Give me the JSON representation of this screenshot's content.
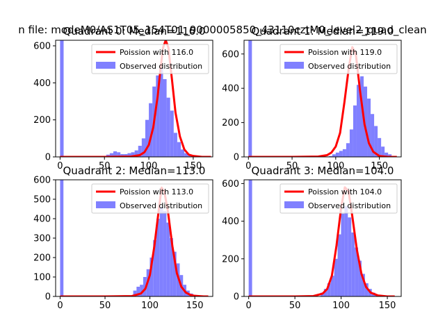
{
  "figure": {
    "suptitle": "n file: modeM0/AS1T05_154T01_9000005850_43110cztM0_level2_quad_clean"
  },
  "colors": {
    "poisson_line": "#ff0000",
    "observed_bars": "#8080ff",
    "spike": "#8080ff",
    "axes": "#000000",
    "legend_border": "#cccccc"
  },
  "chart_data": [
    {
      "type": "bar",
      "title": "Quadrant 0: Median=116.0",
      "xlim": [
        -5,
        172
      ],
      "ylim": [
        0,
        630
      ],
      "xticks": [
        0,
        50,
        100,
        150
      ],
      "yticks": [
        0,
        200,
        400,
        600
      ],
      "legend_placement": "upper right",
      "series": [
        {
          "name": "Poission with 116.0",
          "kind": "line",
          "x": [
            0,
            50,
            80,
            90,
            95,
            100,
            105,
            110,
            113,
            116,
            119,
            122,
            126,
            130,
            135,
            140,
            145,
            150,
            160,
            170
          ],
          "y": [
            0,
            0,
            2,
            10,
            25,
            65,
            160,
            330,
            470,
            590,
            630,
            590,
            420,
            240,
            110,
            40,
            12,
            5,
            0,
            0
          ]
        },
        {
          "name": "Observed distribution",
          "kind": "histogram",
          "bin_start": 0,
          "bin_width": 4,
          "counts": [
            700,
            0,
            0,
            0,
            0,
            0,
            0,
            0,
            0,
            0,
            0,
            0,
            5,
            12,
            20,
            30,
            25,
            15,
            15,
            20,
            25,
            35,
            60,
            100,
            200,
            290,
            380,
            440,
            480,
            420,
            320,
            250,
            130,
            80,
            40,
            20,
            10,
            5,
            3,
            2,
            0,
            0
          ]
        }
      ]
    },
    {
      "type": "bar",
      "title": "Quadrant 1: Median=119.0",
      "xlim": [
        -5,
        175
      ],
      "ylim": [
        0,
        680
      ],
      "xticks": [
        0,
        50,
        100,
        150
      ],
      "yticks": [
        0,
        200,
        400,
        600
      ],
      "legend_placement": "upper right",
      "series": [
        {
          "name": "Poission with 119.0",
          "kind": "line",
          "x": [
            0,
            50,
            80,
            90,
            95,
            100,
            105,
            110,
            115,
            119,
            123,
            128,
            133,
            138,
            143,
            150,
            160,
            170
          ],
          "y": [
            0,
            0,
            2,
            10,
            25,
            60,
            140,
            320,
            520,
            640,
            600,
            380,
            190,
            80,
            30,
            5,
            0,
            0
          ]
        },
        {
          "name": "Observed distribution",
          "kind": "histogram",
          "bin_start": 0,
          "bin_width": 4,
          "counts": [
            700,
            0,
            0,
            0,
            0,
            0,
            0,
            0,
            0,
            0,
            0,
            0,
            0,
            0,
            0,
            0,
            0,
            0,
            0,
            0,
            0,
            0,
            0,
            5,
            15,
            25,
            35,
            45,
            80,
            160,
            300,
            420,
            470,
            410,
            340,
            250,
            180,
            110,
            60,
            25,
            15,
            5,
            2
          ]
        }
      ]
    },
    {
      "type": "bar",
      "title": "Quadrant 2: Median=113.0",
      "xlim": [
        -5,
        170
      ],
      "ylim": [
        0,
        600
      ],
      "xticks": [
        0,
        50,
        100,
        150
      ],
      "yticks": [
        0,
        100,
        200,
        300,
        400,
        500,
        600
      ],
      "legend_placement": "upper right",
      "series": [
        {
          "name": "Poission with 113.0",
          "kind": "line",
          "x": [
            0,
            50,
            80,
            90,
            95,
            100,
            105,
            110,
            113,
            116,
            120,
            125,
            130,
            135,
            140,
            145,
            150,
            160,
            165
          ],
          "y": [
            0,
            0,
            2,
            15,
            40,
            110,
            260,
            450,
            560,
            540,
            440,
            260,
            120,
            50,
            20,
            8,
            3,
            0,
            0
          ]
        },
        {
          "name": "Observed distribution",
          "kind": "histogram",
          "bin_start": 0,
          "bin_width": 3.7,
          "counts": [
            650,
            0,
            0,
            0,
            0,
            0,
            0,
            0,
            0,
            0,
            0,
            0,
            0,
            0,
            0,
            0,
            0,
            0,
            0,
            0,
            0,
            0,
            30,
            50,
            60,
            100,
            140,
            200,
            290,
            400,
            460,
            440,
            380,
            300,
            230,
            170,
            110,
            60,
            30,
            15,
            8,
            3
          ]
        }
      ]
    },
    {
      "type": "bar",
      "title": "Quadrant 3: Median=104.0",
      "xlim": [
        -5,
        165
      ],
      "ylim": [
        0,
        620
      ],
      "xticks": [
        0,
        50,
        100,
        150
      ],
      "yticks": [
        0,
        200,
        400,
        600
      ],
      "legend_placement": "upper right",
      "series": [
        {
          "name": "Poission with 104.0",
          "kind": "line",
          "x": [
            0,
            50,
            70,
            80,
            85,
            90,
            95,
            100,
            104,
            108,
            112,
            117,
            122,
            127,
            132,
            140,
            150,
            158
          ],
          "y": [
            0,
            0,
            2,
            15,
            40,
            110,
            270,
            470,
            580,
            560,
            430,
            250,
            120,
            50,
            20,
            5,
            0,
            0
          ]
        },
        {
          "name": "Observed distribution",
          "kind": "histogram",
          "bin_start": 0,
          "bin_width": 3.7,
          "counts": [
            650,
            0,
            0,
            0,
            0,
            0,
            0,
            0,
            0,
            0,
            0,
            0,
            0,
            0,
            0,
            0,
            0,
            0,
            0,
            0,
            0,
            20,
            40,
            70,
            110,
            200,
            330,
            440,
            480,
            420,
            340,
            260,
            190,
            120,
            70,
            40,
            20,
            8,
            3,
            1
          ]
        }
      ]
    }
  ]
}
